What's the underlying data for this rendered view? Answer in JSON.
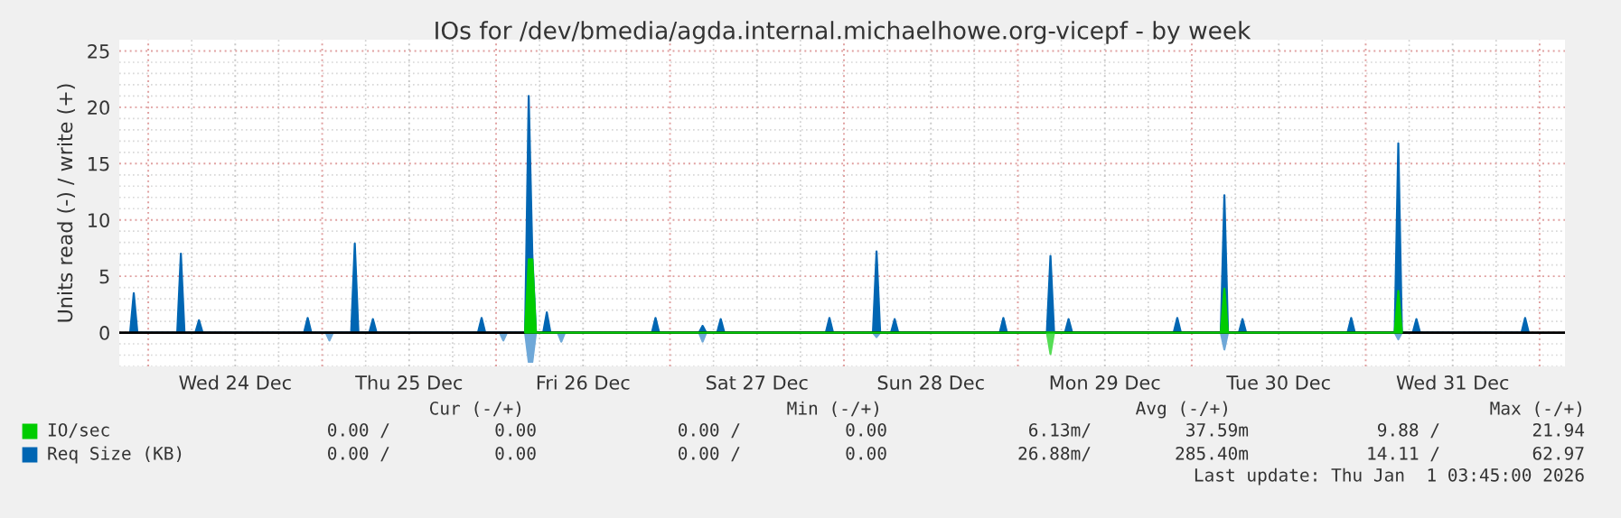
{
  "chart_data": {
    "type": "area",
    "title": "IOs for /dev/bmedia/agda.internal.michaelhowe.org-vicepf - by week",
    "ylabel": "Units read (-) / write (+)",
    "xlim": [
      "2025-12-23T20:00",
      "2026-01-01T03:30"
    ],
    "xticks": [
      {
        "value": "2025-12-24T00:00",
        "label": null
      },
      {
        "value": "2025-12-24T12:00",
        "label": "Wed 24 Dec"
      },
      {
        "value": "2025-12-25T00:00",
        "label": null
      },
      {
        "value": "2025-12-25T12:00",
        "label": "Thu 25 Dec"
      },
      {
        "value": "2025-12-26T00:00",
        "label": null
      },
      {
        "value": "2025-12-26T12:00",
        "label": "Fri 26 Dec"
      },
      {
        "value": "2025-12-27T00:00",
        "label": null
      },
      {
        "value": "2025-12-27T12:00",
        "label": "Sat 27 Dec"
      },
      {
        "value": "2025-12-28T00:00",
        "label": null
      },
      {
        "value": "2025-12-28T12:00",
        "label": "Sun 28 Dec"
      },
      {
        "value": "2025-12-29T00:00",
        "label": null
      },
      {
        "value": "2025-12-29T12:00",
        "label": "Mon 29 Dec"
      },
      {
        "value": "2025-12-30T00:00",
        "label": null
      },
      {
        "value": "2025-12-30T12:00",
        "label": "Tue 30 Dec"
      },
      {
        "value": "2025-12-31T00:00",
        "label": null
      },
      {
        "value": "2025-12-31T12:00",
        "label": "Wed 31 Dec"
      },
      {
        "value": "2026-01-01T00:00",
        "label": null
      }
    ],
    "ylim": [
      -3,
      26
    ],
    "yticks": [
      0,
      5,
      10,
      15,
      20,
      25
    ],
    "grid": true,
    "legend": "bottom",
    "ref_lines": [
      {
        "axis": "y",
        "value": 0,
        "color": "#000000"
      }
    ],
    "series": [
      {
        "name": "IO/sec",
        "color": "#00cc00",
        "x": [
          "2025-12-26T04:00",
          "2025-12-26T04:30",
          "2025-12-26T05:00",
          "2025-12-26T05:30",
          "2025-12-30T04:00",
          "2025-12-30T04:30",
          "2025-12-30T05:00",
          "2025-12-31T04:00",
          "2025-12-31T04:30",
          "2025-12-31T05:00"
        ],
        "values": [
          0,
          6.5,
          6.5,
          0,
          0,
          3.9,
          0,
          0,
          3.7,
          0
        ]
      },
      {
        "color": "#55dd55",
        "x": [
          "2025-12-29T04:00",
          "2025-12-29T04:30",
          "2025-12-29T05:00"
        ],
        "values": [
          0,
          -1.9,
          0
        ]
      },
      {
        "name": "Req Size (KB)",
        "color": "#0066b3",
        "x": [
          "2025-12-23T21:30",
          "2025-12-23T22:00",
          "2025-12-23T22:30",
          "2025-12-24T04:00",
          "2025-12-24T04:30",
          "2025-12-24T05:00",
          "2025-12-24T06:30",
          "2025-12-24T07:00",
          "2025-12-24T07:30",
          "2025-12-24T21:30",
          "2025-12-24T22:00",
          "2025-12-24T22:30",
          "2025-12-25T04:00",
          "2025-12-25T04:30",
          "2025-12-25T05:00",
          "2025-12-25T06:30",
          "2025-12-25T07:00",
          "2025-12-25T07:30",
          "2025-12-25T21:30",
          "2025-12-25T22:00",
          "2025-12-25T22:30",
          "2025-12-26T04:00",
          "2025-12-26T04:30",
          "2025-12-26T05:00",
          "2025-12-26T05:30",
          "2025-12-26T06:30",
          "2025-12-26T07:00",
          "2025-12-26T07:30",
          "2025-12-26T21:30",
          "2025-12-26T22:00",
          "2025-12-26T22:30",
          "2025-12-27T04:00",
          "2025-12-27T04:30",
          "2025-12-27T05:00",
          "2025-12-27T06:30",
          "2025-12-27T07:00",
          "2025-12-27T07:30",
          "2025-12-27T21:30",
          "2025-12-27T22:00",
          "2025-12-27T22:30",
          "2025-12-28T04:00",
          "2025-12-28T04:30",
          "2025-12-28T05:00",
          "2025-12-28T06:30",
          "2025-12-28T07:00",
          "2025-12-28T07:30",
          "2025-12-28T21:30",
          "2025-12-28T22:00",
          "2025-12-28T22:30",
          "2025-12-29T04:00",
          "2025-12-29T04:30",
          "2025-12-29T05:00",
          "2025-12-29T06:30",
          "2025-12-29T07:00",
          "2025-12-29T07:30",
          "2025-12-29T21:30",
          "2025-12-29T22:00",
          "2025-12-29T22:30",
          "2025-12-30T04:00",
          "2025-12-30T04:30",
          "2025-12-30T05:00",
          "2025-12-30T06:30",
          "2025-12-30T07:00",
          "2025-12-30T07:30",
          "2025-12-30T21:30",
          "2025-12-30T22:00",
          "2025-12-30T22:30",
          "2025-12-31T04:00",
          "2025-12-31T04:30",
          "2025-12-31T05:00",
          "2025-12-31T06:30",
          "2025-12-31T07:00",
          "2025-12-31T07:30",
          "2025-12-31T21:30",
          "2025-12-31T22:00",
          "2025-12-31T22:30"
        ],
        "values": [
          0,
          3.5,
          0,
          0,
          7.0,
          0,
          0,
          1.1,
          0,
          0,
          1.3,
          0,
          0,
          7.9,
          0,
          0,
          1.2,
          0,
          0,
          1.3,
          0,
          0,
          21.0,
          6.9,
          0,
          0,
          1.8,
          0,
          0,
          1.3,
          0,
          0,
          0.6,
          0,
          0,
          1.2,
          0,
          0,
          1.3,
          0,
          0,
          7.2,
          0,
          0,
          1.2,
          0,
          0,
          1.3,
          0,
          0,
          6.8,
          0,
          0,
          1.2,
          0,
          0,
          1.3,
          0,
          0,
          12.2,
          0,
          0,
          1.2,
          0,
          0,
          1.3,
          0,
          0,
          16.8,
          0,
          0,
          1.2,
          0,
          0,
          1.3,
          0
        ]
      },
      {
        "color": "#6fa8d8",
        "x": [
          "2025-12-25T00:30",
          "2025-12-25T01:00",
          "2025-12-25T01:30",
          "2025-12-26T00:30",
          "2025-12-26T01:00",
          "2025-12-26T01:30",
          "2025-12-26T04:00",
          "2025-12-26T04:30",
          "2025-12-26T05:00",
          "2025-12-26T05:30",
          "2025-12-26T08:30",
          "2025-12-26T09:00",
          "2025-12-26T09:30",
          "2025-12-27T04:00",
          "2025-12-27T04:30",
          "2025-12-27T05:00",
          "2025-12-28T04:00",
          "2025-12-28T04:30",
          "2025-12-28T05:00",
          "2025-12-29T04:00",
          "2025-12-29T04:30",
          "2025-12-29T05:00",
          "2025-12-30T04:00",
          "2025-12-30T04:30",
          "2025-12-30T05:00",
          "2025-12-31T04:00",
          "2025-12-31T04:30",
          "2025-12-31T05:00"
        ],
        "values": [
          0,
          -0.7,
          0,
          0,
          -0.7,
          0,
          0,
          -2.6,
          -2.6,
          0,
          0,
          -0.8,
          0,
          0,
          -0.8,
          0,
          0,
          -0.4,
          0,
          0,
          -0.5,
          0,
          0,
          -1.5,
          0,
          0,
          -0.6,
          0
        ]
      }
    ],
    "annotations": [
      "Cur (-/+)",
      "Min (-/+)",
      "Avg (-/+)",
      "Max (-/+)",
      "0.00 /",
      "0.00",
      "0.00 /",
      "0.00",
      "6.13m/",
      "37.59m",
      "9.88 /",
      "21.94",
      "0.00 /",
      "0.00",
      "0.00 /",
      "0.00",
      "26.88m/",
      "285.40m",
      "14.11 /",
      "62.97",
      "Last update: Thu Jan  1 03:45:00 2026"
    ]
  }
}
